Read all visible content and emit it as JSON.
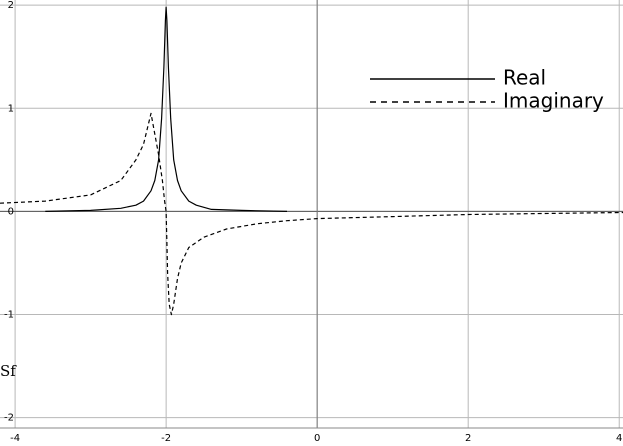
{
  "chart_data": {
    "type": "line",
    "title": "",
    "xlabel": "",
    "ylabel": "Sf",
    "xlim": [
      -4.2,
      4.05
    ],
    "ylim": [
      -2.1,
      2.05
    ],
    "grid": true,
    "x_ticks": [
      -4,
      -2,
      0,
      2,
      4
    ],
    "y_ticks": [
      -2,
      -1,
      0,
      1,
      2
    ],
    "legend": {
      "placement": "top-right"
    },
    "series": [
      {
        "name": "Real",
        "style": "solid",
        "color": "#000000",
        "x": [
          -3.6,
          -3.0,
          -2.6,
          -2.4,
          -2.3,
          -2.2,
          -2.15,
          -2.1,
          -2.06,
          -2.03,
          -2.01,
          -2.0,
          -1.99,
          -1.97,
          -1.94,
          -1.9,
          -1.85,
          -1.8,
          -1.7,
          -1.6,
          -1.4,
          -1.0,
          -0.4
        ],
        "y": [
          0.0,
          0.01,
          0.03,
          0.06,
          0.1,
          0.2,
          0.3,
          0.5,
          0.9,
          1.4,
          1.85,
          1.98,
          1.85,
          1.4,
          0.9,
          0.5,
          0.3,
          0.2,
          0.1,
          0.06,
          0.02,
          0.01,
          0.0
        ]
      },
      {
        "name": "Imaginary",
        "style": "dashed",
        "color": "#000000",
        "x": [
          -4.2,
          -3.6,
          -3.0,
          -2.6,
          -2.4,
          -2.3,
          -2.2,
          -2.1,
          -2.05,
          -2.02,
          -2.0,
          -1.99,
          -1.98,
          -1.96,
          -1.93,
          -1.9,
          -1.85,
          -1.8,
          -1.7,
          -1.5,
          -1.2,
          -0.8,
          -0.4,
          0.0,
          1.0,
          2.0,
          3.0,
          4.05
        ],
        "y": [
          0.08,
          0.1,
          0.16,
          0.3,
          0.5,
          0.65,
          0.95,
          0.55,
          0.3,
          0.1,
          0.0,
          -0.3,
          -0.6,
          -0.9,
          -1.0,
          -0.9,
          -0.65,
          -0.5,
          -0.35,
          -0.25,
          -0.17,
          -0.12,
          -0.09,
          -0.07,
          -0.05,
          -0.03,
          -0.02,
          -0.01
        ]
      }
    ]
  }
}
